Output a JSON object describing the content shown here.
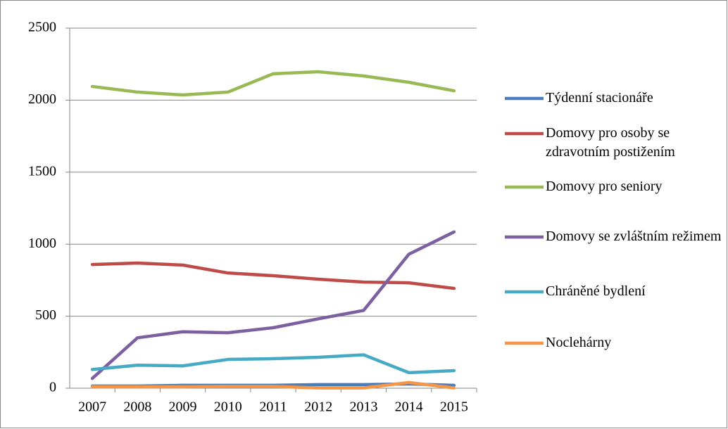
{
  "chart_data": {
    "type": "line",
    "categories": [
      "2007",
      "2008",
      "2009",
      "2010",
      "2011",
      "2012",
      "2013",
      "2014",
      "2015"
    ],
    "series": [
      {
        "name": "Týdenní stacionáře",
        "color": "#4a7ebb",
        "values": [
          15,
          15,
          20,
          20,
          20,
          25,
          25,
          30,
          20
        ]
      },
      {
        "name": "Domovy pro osoby se zdravotním postižením",
        "color": "#be4b48",
        "values": [
          859,
          869,
          855,
          800,
          781,
          757,
          737,
          732,
          693
        ]
      },
      {
        "name": "Domovy pro seniory",
        "color": "#98b954",
        "values": [
          2095,
          2056,
          2036,
          2056,
          2183,
          2197,
          2168,
          2124,
          2065
        ]
      },
      {
        "name": "Domovy se zvláštním režimem",
        "color": "#7d60a0",
        "values": [
          68,
          350,
          392,
          385,
          420,
          482,
          540,
          930,
          1085
        ]
      },
      {
        "name": "Chráněné bydlení",
        "color": "#46aac5",
        "values": [
          130,
          160,
          155,
          200,
          205,
          215,
          232,
          108,
          122
        ]
      },
      {
        "name": "Noclehárny",
        "color": "#f79646",
        "values": [
          10,
          10,
          10,
          12,
          12,
          2,
          2,
          40,
          2
        ]
      }
    ],
    "ylim": [
      0,
      2500
    ],
    "yticks": [
      0,
      500,
      1000,
      1500,
      2000,
      2500
    ],
    "grid": true,
    "legend": "right"
  }
}
